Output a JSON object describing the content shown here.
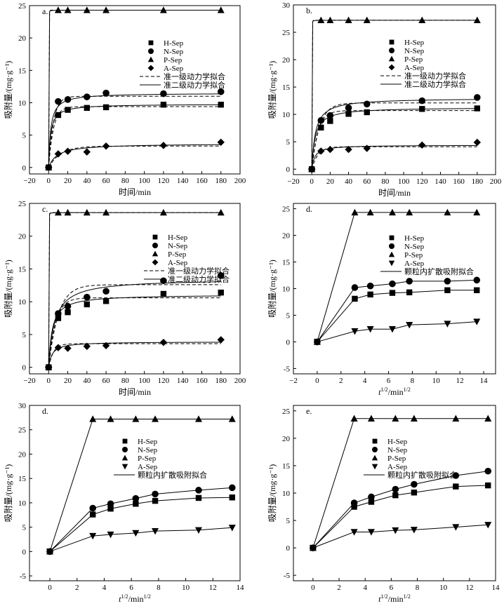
{
  "colors": {
    "ink": "#000000",
    "background": "#ffffff"
  },
  "chart_data": [
    {
      "type": "scatter",
      "panel_label": "a.",
      "xlabel": "时间/min",
      "ylabel": "吸附量/(mg·g⁻¹)",
      "xlim": [
        -20,
        200
      ],
      "ylim": [
        -1,
        25
      ],
      "xticks": [
        -20,
        0,
        20,
        40,
        60,
        80,
        100,
        120,
        140,
        160,
        180,
        200
      ],
      "yticks": [
        0,
        5,
        10,
        15,
        20,
        25
      ],
      "x": [
        0,
        10,
        20,
        40,
        60,
        120,
        180
      ],
      "series": [
        {
          "name": "H-Sep",
          "marker": "square",
          "values": [
            0,
            8.1,
            8.9,
            9.2,
            9.3,
            9.7,
            9.7
          ]
        },
        {
          "name": "N-Sep",
          "marker": "circle",
          "values": [
            0,
            10.2,
            10.5,
            10.9,
            11.5,
            11.4,
            11.7
          ]
        },
        {
          "name": "P-Sep",
          "marker": "triangle",
          "values": [
            0,
            24.3,
            24.3,
            24.3,
            24.3,
            24.3,
            24.3
          ]
        },
        {
          "name": "A-Sep",
          "marker": "diamond",
          "values": [
            0,
            2.1,
            2.5,
            2.4,
            3.3,
            3.4,
            3.9
          ]
        }
      ],
      "fits": [
        {
          "name": "准一级动力学拟合",
          "style": "dashed",
          "model": "PFO",
          "curves": [
            {
              "series": "H-Sep",
              "qe": 9.4,
              "k": 0.2
            },
            {
              "series": "N-Sep",
              "qe": 11.0,
              "k": 0.2
            },
            {
              "series": "P-Sep",
              "qe": 24.3,
              "k": 5
            },
            {
              "series": "A-Sep",
              "qe": 3.3,
              "k": 0.08
            }
          ]
        },
        {
          "name": "准二级动力学拟合",
          "style": "solid",
          "model": "PSO",
          "curves": [
            {
              "series": "H-Sep",
              "qe": 9.8,
              "k": 0.05
            },
            {
              "series": "N-Sep",
              "qe": 11.5,
              "k": 0.04
            },
            {
              "series": "P-Sep",
              "qe": 24.3,
              "k": 5
            },
            {
              "series": "A-Sep",
              "qe": 3.7,
              "k": 0.03
            }
          ]
        }
      ],
      "legend": [
        "H-Sep",
        "N-Sep",
        "P-Sep",
        "A-Sep",
        "准一级动力学拟合",
        "准二级动力学拟合"
      ]
    },
    {
      "type": "scatter",
      "panel_label": "b.",
      "xlabel": "时间/min",
      "ylabel": "吸附量/(mg·g⁻¹)",
      "xlim": [
        -20,
        200
      ],
      "ylim": [
        -1,
        30
      ],
      "xticks": [
        -20,
        0,
        20,
        40,
        60,
        80,
        100,
        120,
        140,
        160,
        180,
        200
      ],
      "yticks": [
        0,
        5,
        10,
        15,
        20,
        25,
        30
      ],
      "x": [
        0,
        10,
        20,
        40,
        60,
        120,
        180
      ],
      "series": [
        {
          "name": "H-Sep",
          "marker": "square",
          "values": [
            0,
            7.6,
            8.8,
            10.1,
            10.4,
            11.0,
            11.1
          ]
        },
        {
          "name": "N-Sep",
          "marker": "circle",
          "values": [
            0,
            8.9,
            9.8,
            11.2,
            11.9,
            12.5,
            13.1
          ]
        },
        {
          "name": "P-Sep",
          "marker": "triangle",
          "values": [
            0,
            27.2,
            27.2,
            27.2,
            27.2,
            27.2,
            27.2
          ]
        },
        {
          "name": "A-Sep",
          "marker": "diamond",
          "values": [
            0,
            3.3,
            3.6,
            3.6,
            3.8,
            4.4,
            4.9
          ]
        }
      ],
      "fits": [
        {
          "name": "准一级动力学拟合",
          "style": "dashed",
          "model": "PFO",
          "curves": [
            {
              "series": "H-Sep",
              "qe": 10.7,
              "k": 0.15
            },
            {
              "series": "N-Sep",
              "qe": 12.1,
              "k": 0.12
            },
            {
              "series": "P-Sep",
              "qe": 27.2,
              "k": 5
            },
            {
              "series": "A-Sep",
              "qe": 4.1,
              "k": 0.15
            }
          ]
        },
        {
          "name": "准二级动力学拟合",
          "style": "solid",
          "model": "PSO",
          "curves": [
            {
              "series": "H-Sep",
              "qe": 11.3,
              "k": 0.025
            },
            {
              "series": "N-Sep",
              "qe": 13.0,
              "k": 0.02
            },
            {
              "series": "P-Sep",
              "qe": 27.2,
              "k": 5
            },
            {
              "series": "A-Sep",
              "qe": 4.4,
              "k": 0.07
            }
          ]
        }
      ],
      "legend": [
        "H-Sep",
        "N-Sep",
        "P-Sep",
        "A-Sep",
        "准一级动力学拟合",
        "准二级动力学拟合"
      ]
    },
    {
      "type": "scatter",
      "panel_label": "c.",
      "xlabel": "时间/min",
      "ylabel": "吸附量/(mg·g⁻¹)",
      "xlim": [
        -20,
        200
      ],
      "ylim": [
        -1,
        25
      ],
      "xticks": [
        -20,
        0,
        20,
        40,
        60,
        80,
        100,
        120,
        140,
        160,
        180,
        200
      ],
      "yticks": [
        0,
        5,
        10,
        15,
        20,
        25
      ],
      "x": [
        0,
        10,
        20,
        40,
        60,
        120,
        180
      ],
      "series": [
        {
          "name": "H-Sep",
          "marker": "square",
          "values": [
            0,
            7.5,
            8.4,
            9.6,
            10.1,
            11.2,
            11.4
          ]
        },
        {
          "name": "N-Sep",
          "marker": "circle",
          "values": [
            0,
            8.2,
            9.3,
            10.7,
            11.6,
            13.2,
            14.0
          ]
        },
        {
          "name": "P-Sep",
          "marker": "triangle",
          "values": [
            0,
            23.6,
            23.6,
            23.6,
            23.6,
            23.6,
            23.6
          ]
        },
        {
          "name": "A-Sep",
          "marker": "diamond",
          "values": [
            0,
            3.0,
            2.9,
            3.2,
            3.3,
            3.8,
            4.2
          ]
        }
      ],
      "fits": [
        {
          "name": "准一级动力学拟合",
          "style": "dashed",
          "model": "PFO",
          "curves": [
            {
              "series": "H-Sep",
              "qe": 10.6,
              "k": 0.14
            },
            {
              "series": "N-Sep",
              "qe": 12.6,
              "k": 0.1
            },
            {
              "series": "P-Sep",
              "qe": 23.6,
              "k": 5
            },
            {
              "series": "A-Sep",
              "qe": 3.6,
              "k": 0.2
            }
          ]
        },
        {
          "name": "准二级动力学拟合",
          "style": "solid",
          "model": "PSO",
          "curves": [
            {
              "series": "H-Sep",
              "qe": 11.1,
              "k": 0.025
            },
            {
              "series": "N-Sep",
              "qe": 13.5,
              "k": 0.012
            },
            {
              "series": "P-Sep",
              "qe": 23.6,
              "k": 5
            },
            {
              "series": "A-Sep",
              "qe": 3.9,
              "k": 0.07
            }
          ]
        }
      ],
      "legend": [
        "H-Sep",
        "N-Sep",
        "P-Sep",
        "A-Sep",
        "准一级动力学拟合",
        "准二级动力学拟合"
      ]
    },
    {
      "type": "line",
      "panel_label": "d.",
      "xlabel": "t",
      "xlabel_sup": "1/2",
      "xlabel_tail": "/min",
      "xlabel_tail_sup": "1/2",
      "ylabel": "吸附量/(mg·g⁻¹)",
      "xlim": [
        -2,
        15
      ],
      "ylim": [
        -6,
        26
      ],
      "xticks": [
        -2,
        0,
        2,
        4,
        6,
        8,
        10,
        12,
        14
      ],
      "yticks": [
        -5,
        0,
        5,
        10,
        15,
        20,
        25
      ],
      "x": [
        0,
        3.16,
        4.47,
        6.32,
        7.75,
        10.95,
        13.42
      ],
      "series": [
        {
          "name": "H-Sep",
          "marker": "square",
          "values": [
            0,
            8.1,
            8.9,
            9.2,
            9.3,
            9.7,
            9.7
          ]
        },
        {
          "name": "N-Sep",
          "marker": "circle",
          "values": [
            0,
            10.2,
            10.5,
            10.9,
            11.4,
            11.4,
            11.6
          ]
        },
        {
          "name": "P-Sep",
          "marker": "triangle",
          "values": [
            0,
            24.3,
            24.3,
            24.3,
            24.3,
            24.3,
            24.3
          ]
        },
        {
          "name": "A-Sep",
          "marker": "down-triangle",
          "values": [
            0,
            2.0,
            2.4,
            2.4,
            3.2,
            3.4,
            3.8
          ]
        }
      ],
      "legend": [
        "H-Sep",
        "N-Sep",
        "P-Sep",
        "A-Sep",
        "颗粒内扩散吸附拟合"
      ]
    },
    {
      "type": "line",
      "panel_label": "d.",
      "xlabel": "t",
      "xlabel_sup": "1/2",
      "xlabel_tail": "/min",
      "xlabel_tail_sup": "1/2",
      "ylabel": "吸附量/(mg·g⁻¹)",
      "xlim": [
        -1.5,
        14
      ],
      "ylim": [
        -6,
        30
      ],
      "xticks": [
        0,
        2,
        4,
        6,
        8,
        10,
        12,
        14
      ],
      "yticks": [
        -5,
        0,
        5,
        10,
        15,
        20,
        25,
        30
      ],
      "x": [
        0,
        3.16,
        4.47,
        6.32,
        7.75,
        10.95,
        13.42
      ],
      "series": [
        {
          "name": "H-Sep",
          "marker": "square",
          "values": [
            0,
            7.6,
            8.8,
            9.8,
            10.4,
            11.0,
            11.1
          ]
        },
        {
          "name": "N-Sep",
          "marker": "circle",
          "values": [
            0,
            8.9,
            9.8,
            10.9,
            11.8,
            12.6,
            13.1
          ]
        },
        {
          "name": "P-Sep",
          "marker": "triangle",
          "values": [
            0,
            27.2,
            27.2,
            27.2,
            27.2,
            27.2,
            27.2
          ]
        },
        {
          "name": "A-Sep",
          "marker": "down-triangle",
          "values": [
            0,
            3.2,
            3.5,
            3.8,
            4.2,
            4.4,
            4.9
          ]
        }
      ],
      "legend": [
        "H-Sep",
        "N-Sep",
        "P-Sep",
        "A-Sep",
        "颗粒内扩散吸附拟合"
      ]
    },
    {
      "type": "line",
      "panel_label": "e.",
      "xlabel": "t",
      "xlabel_sup": "1/2",
      "xlabel_tail": "/min",
      "xlabel_tail_sup": "1/2",
      "ylabel": "吸附量/(mg·g⁻¹)",
      "xlim": [
        -1.5,
        14
      ],
      "ylim": [
        -6,
        26
      ],
      "xticks": [
        0,
        2,
        4,
        6,
        8,
        10,
        12,
        14
      ],
      "yticks": [
        -5,
        0,
        5,
        10,
        15,
        20,
        25
      ],
      "x": [
        0,
        3.16,
        4.47,
        6.32,
        7.75,
        10.95,
        13.42
      ],
      "series": [
        {
          "name": "H-Sep",
          "marker": "square",
          "values": [
            0,
            7.5,
            8.4,
            9.6,
            10.1,
            11.2,
            11.4
          ]
        },
        {
          "name": "N-Sep",
          "marker": "circle",
          "values": [
            0,
            8.2,
            9.3,
            10.7,
            11.6,
            13.2,
            14.0
          ]
        },
        {
          "name": "P-Sep",
          "marker": "triangle",
          "values": [
            0,
            23.6,
            23.6,
            23.6,
            23.6,
            23.6,
            23.6
          ]
        },
        {
          "name": "A-Sep",
          "marker": "down-triangle",
          "values": [
            0,
            2.9,
            2.9,
            3.2,
            3.3,
            3.8,
            4.2
          ]
        }
      ],
      "legend": [
        "H-Sep",
        "N-Sep",
        "P-Sep",
        "A-Sep",
        "颗粒内扩散吸附拟合"
      ]
    }
  ]
}
